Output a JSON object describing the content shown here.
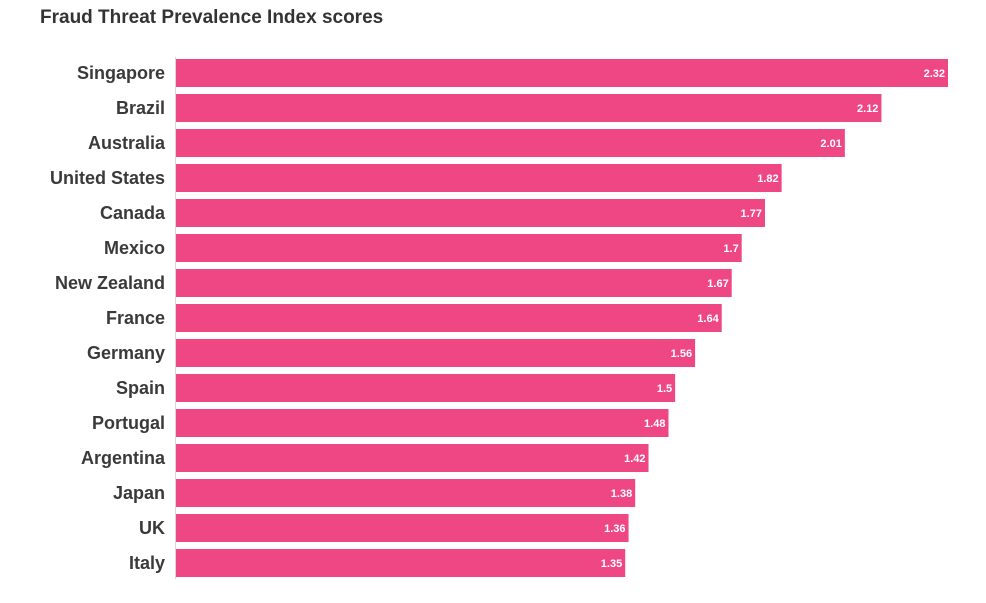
{
  "chart_data": {
    "type": "bar",
    "orientation": "horizontal",
    "title": "Fraud Threat Prevalence Index scores",
    "xlabel": "",
    "ylabel": "",
    "categories": [
      "Singapore",
      "Brazil",
      "Australia",
      "United States",
      "Canada",
      "Mexico",
      "New Zealand",
      "France",
      "Germany",
      "Spain",
      "Portugal",
      "Argentina",
      "Japan",
      "UK",
      "Italy"
    ],
    "values": [
      2.32,
      2.12,
      2.01,
      1.82,
      1.77,
      1.7,
      1.67,
      1.64,
      1.56,
      1.5,
      1.48,
      1.42,
      1.38,
      1.36,
      1.35
    ],
    "value_labels": [
      "2.32",
      "2.12",
      "2.01",
      "1.82",
      "1.77",
      "1.7",
      "1.67",
      "1.64",
      "1.56",
      "1.5",
      "1.48",
      "1.42",
      "1.38",
      "1.36",
      "1.35"
    ],
    "xlim": [
      0,
      2.32
    ],
    "grid": false,
    "legend": "none",
    "bar_color": "#ee4784"
  }
}
